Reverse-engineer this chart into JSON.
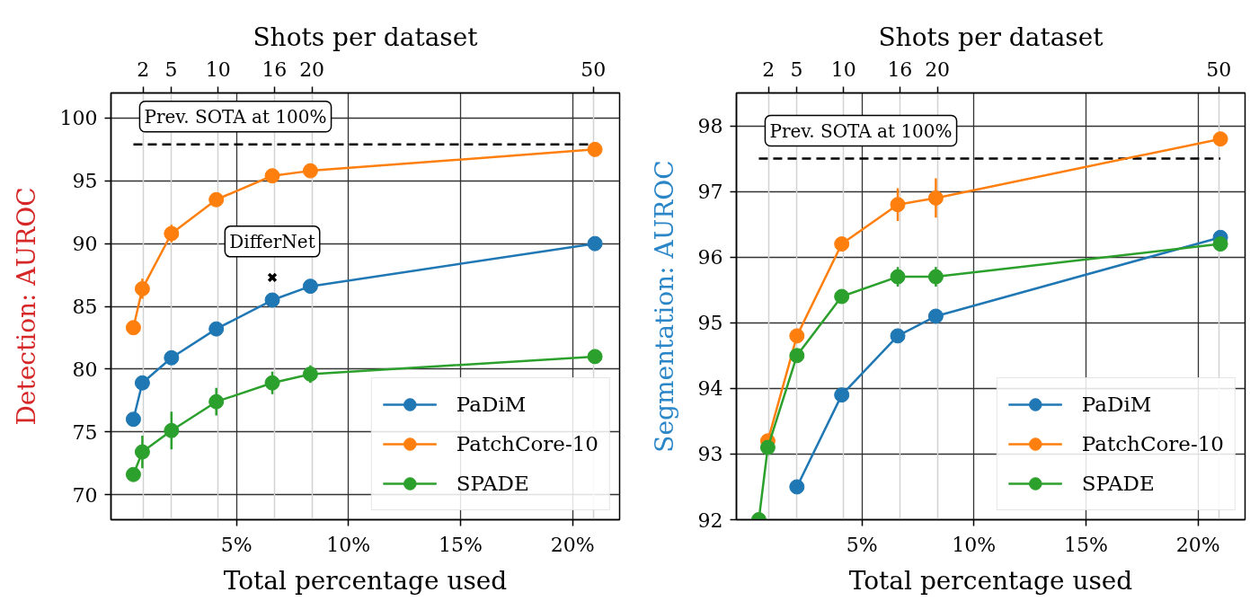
{
  "chart_data": [
    {
      "type": "line",
      "xlabel": "Total percentage used",
      "x2label": "Shots per dataset",
      "ylabel": "Detection: AUROC",
      "x": [
        0.4,
        0.8,
        2.1,
        4.1,
        6.6,
        8.3,
        21.0
      ],
      "xlim": [
        -0.6,
        22.1
      ],
      "xticks": [
        {
          "value": 5,
          "label": "5%"
        },
        {
          "value": 10,
          "label": "10%"
        },
        {
          "value": 15,
          "label": "15%"
        },
        {
          "value": 20,
          "label": "20%"
        }
      ],
      "x2lim": [
        -1.43,
        52.81
      ],
      "x2ticks": [
        2,
        5,
        10,
        16,
        20,
        50
      ],
      "ylim": [
        68,
        102
      ],
      "yticks": [
        70,
        75,
        80,
        85,
        90,
        95,
        100
      ],
      "series": [
        {
          "name": "PaDiM",
          "color": "#1f77b4",
          "values": [
            76.0,
            78.9,
            80.9,
            83.2,
            85.5,
            86.6,
            90.0
          ]
        },
        {
          "name": "PatchCore-10",
          "color": "#ff7f0e",
          "values": [
            83.3,
            86.4,
            90.8,
            93.5,
            95.4,
            95.8,
            97.5
          ],
          "errors": [
            null,
            0.8,
            0.7,
            null,
            null,
            null,
            null
          ]
        },
        {
          "name": "SPADE",
          "color": "#2ca02c",
          "values": [
            71.6,
            73.4,
            75.1,
            77.4,
            78.9,
            79.6,
            81.0
          ],
          "errors": [
            null,
            1.3,
            1.5,
            1.1,
            0.9,
            0.7,
            null
          ]
        },
        {
          "name": "DifferNet",
          "type": "scatter",
          "marker": "cross",
          "color": "#000000",
          "x": [
            6.6
          ],
          "values": [
            87.3
          ]
        }
      ],
      "ref_lines": [
        {
          "axis": "y",
          "value": 97.9,
          "label": "Prev. SOTA at 100%",
          "color": "#000000",
          "line_style": "dashed"
        }
      ],
      "grid": true,
      "legend": "bottom right",
      "marker": "circle",
      "line_style": "solid"
    },
    {
      "type": "line",
      "xlabel": "Total percentage used",
      "x2label": "Shots per dataset",
      "ylabel": "Segmentation: AUROC",
      "x": [
        0.4,
        0.8,
        2.1,
        4.1,
        6.6,
        8.3,
        21.0
      ],
      "xlim": [
        -0.6,
        22.1
      ],
      "xticks": [
        {
          "value": 5,
          "label": "5%"
        },
        {
          "value": 10,
          "label": "10%"
        },
        {
          "value": 15,
          "label": "15%"
        },
        {
          "value": 20,
          "label": "20%"
        }
      ],
      "x2lim": [
        -1.43,
        52.81
      ],
      "x2ticks": [
        2,
        5,
        10,
        16,
        20,
        50
      ],
      "ylim": [
        92,
        98.5
      ],
      "yticks": [
        92,
        93,
        94,
        95,
        96,
        97,
        98
      ],
      "series": [
        {
          "name": "PaDiM",
          "color": "#1f77b4",
          "values": [
            null,
            null,
            92.5,
            93.9,
            94.8,
            95.1,
            96.3
          ]
        },
        {
          "name": "PatchCore-10",
          "color": "#ff7f0e",
          "values": [
            null,
            93.2,
            94.8,
            96.2,
            96.8,
            96.9,
            97.8
          ],
          "errors": [
            null,
            null,
            null,
            null,
            0.25,
            0.3,
            null
          ]
        },
        {
          "name": "SPADE",
          "color": "#2ca02c",
          "values": [
            92.0,
            93.1,
            94.5,
            95.4,
            95.7,
            95.7,
            96.2
          ],
          "errors": [
            null,
            null,
            null,
            null,
            0.15,
            0.15,
            null
          ]
        }
      ],
      "ref_lines": [
        {
          "axis": "y",
          "value": 97.5,
          "label": "Prev. SOTA at 100%",
          "color": "#000000",
          "line_style": "dashed"
        }
      ],
      "grid": true,
      "legend": "bottom right",
      "marker": "circle",
      "line_style": "solid"
    }
  ]
}
